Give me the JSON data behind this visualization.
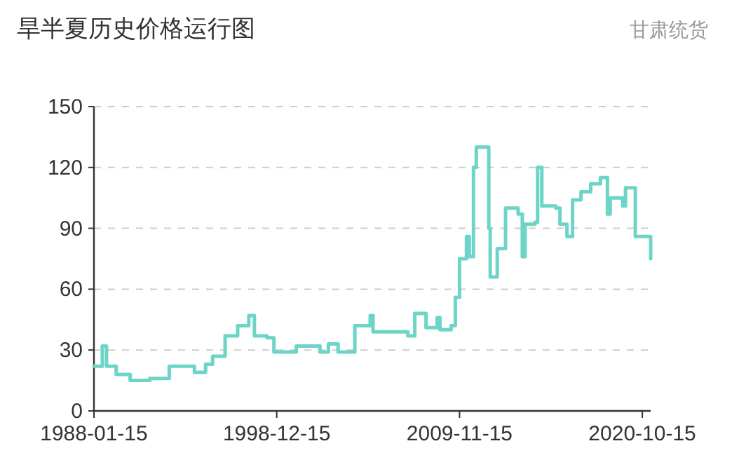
{
  "chart_data": {
    "type": "step",
    "title": "旱半夏历史价格运行图",
    "subtitle": "甘肃统货",
    "x": [
      "1988-01-15",
      "1988-07",
      "1988-10",
      "1989-05",
      "1990-03",
      "1991-05",
      "1992-07",
      "1993-04",
      "1994-01",
      "1994-09",
      "1995-02",
      "1995-11",
      "1996-08",
      "1997-04",
      "1997-08",
      "1998-05",
      "1998-10",
      "2000-02",
      "2001-03",
      "2001-07",
      "2002-01",
      "2002-08",
      "2003-08",
      "2004-04",
      "2004-07",
      "2004-09",
      "2006-10",
      "2007-03",
      "2007-11",
      "2008-07",
      "2008-09",
      "2009-05",
      "2009-08",
      "2009-11",
      "2010-04",
      "2010-06",
      "2010-09",
      "2010-11",
      "2011-04",
      "2011-08",
      "2011-09",
      "2012-01",
      "2012-02",
      "2012-07",
      "2012-08",
      "2013-05",
      "2013-08",
      "2013-10",
      "2014-05",
      "2014-07",
      "2014-10",
      "2015-08",
      "2015-11",
      "2016-04",
      "2016-08",
      "2017-02",
      "2017-09",
      "2018-04",
      "2018-09",
      "2018-11",
      "2019-08",
      "2019-10",
      "2020-03",
      "2020-05",
      "2021-03",
      "2021-04"
    ],
    "series": [
      {
        "color": "#6dd5c8",
        "values": [
          22,
          32,
          22,
          18,
          15,
          16,
          22,
          22,
          19,
          23,
          27,
          37,
          42,
          47,
          37,
          36,
          29,
          32,
          32,
          29,
          33,
          29,
          42,
          42,
          47,
          39,
          37,
          48,
          41,
          46,
          40,
          42,
          56,
          75,
          86,
          76,
          120,
          130,
          130,
          90,
          66,
          66,
          80,
          80,
          100,
          97,
          76,
          92,
          93,
          120,
          101,
          100,
          92,
          86,
          104,
          108,
          112,
          115,
          97,
          105,
          101,
          110,
          110,
          86,
          86,
          75
        ]
      }
    ],
    "xlim": [
      "1988-01-15",
      "2021-04-15"
    ],
    "xticks": [
      "1988-01-15",
      "1998-12-15",
      "2009-11-15",
      "2020-10-15"
    ],
    "ylim": [
      0,
      150
    ],
    "yticks": [
      0,
      30,
      60,
      90,
      120,
      150
    ],
    "grid": "y"
  }
}
